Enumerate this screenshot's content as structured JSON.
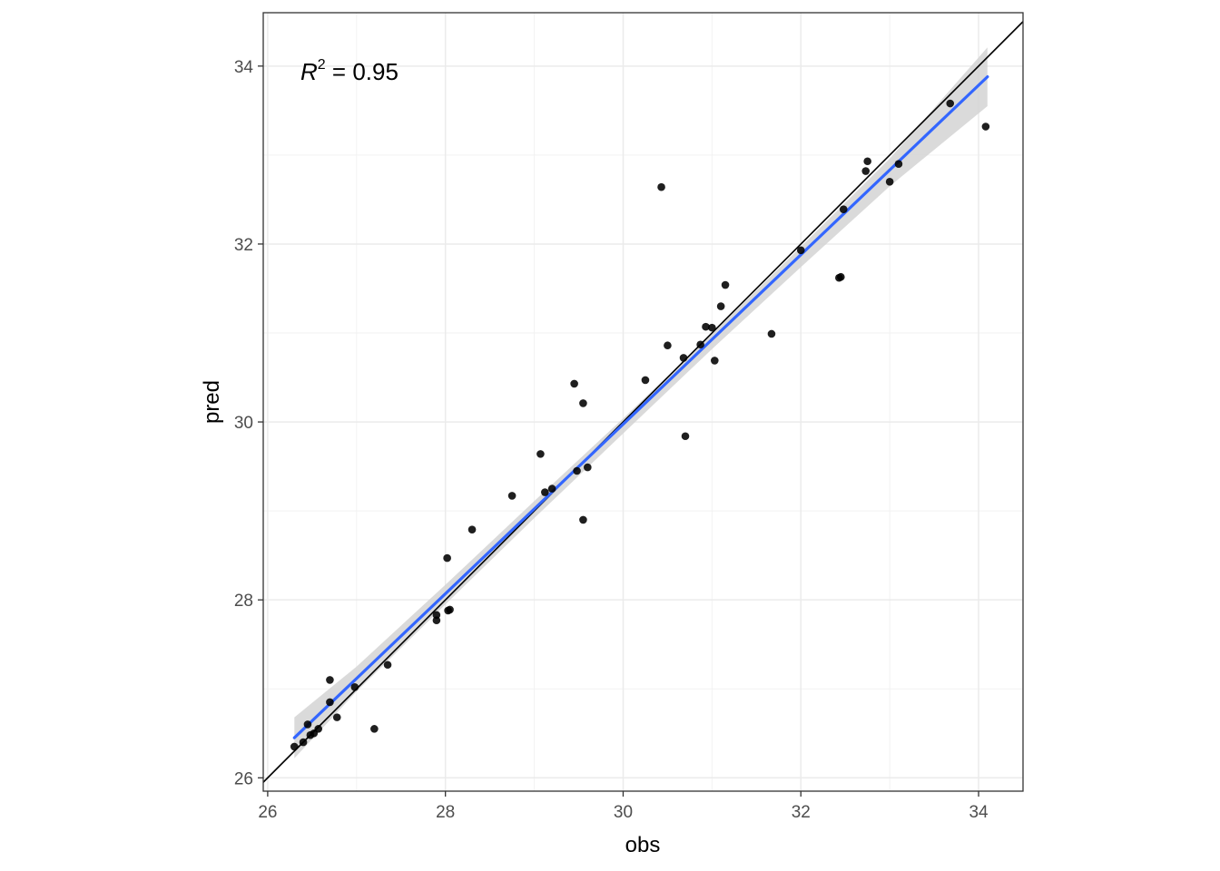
{
  "chart_data": {
    "type": "scatter",
    "xlabel": "obs",
    "ylabel": "pred",
    "xlim": [
      25.95,
      34.5
    ],
    "ylim": [
      25.85,
      34.6
    ],
    "x_ticks": [
      26,
      28,
      30,
      32,
      34
    ],
    "y_ticks": [
      26,
      28,
      30,
      32,
      34
    ],
    "grid": true,
    "annotation": {
      "prefix": "R",
      "superscript": "2",
      "text": " = 0.95"
    },
    "identity_line": {
      "slope": 1,
      "intercept": 0,
      "color": "#000000"
    },
    "fit_line": {
      "x_start": 26.3,
      "y_start": 26.45,
      "x_end": 34.1,
      "y_end": 33.88,
      "color": "#3366ff"
    },
    "confidence_band": {
      "x": [
        26.3,
        27.0,
        28.0,
        29.0,
        30.0,
        31.0,
        32.0,
        33.0,
        34.1
      ],
      "lower": [
        26.22,
        26.97,
        27.95,
        28.92,
        29.87,
        30.82,
        31.74,
        32.65,
        33.55
      ],
      "upper": [
        26.68,
        27.25,
        28.17,
        29.11,
        30.04,
        30.99,
        31.97,
        32.96,
        34.21
      ],
      "color": "#d3d3d3"
    },
    "points": [
      {
        "x": 26.3,
        "y": 26.35
      },
      {
        "x": 26.4,
        "y": 26.4
      },
      {
        "x": 26.45,
        "y": 26.6
      },
      {
        "x": 26.48,
        "y": 26.48
      },
      {
        "x": 26.52,
        "y": 26.5
      },
      {
        "x": 26.57,
        "y": 26.55
      },
      {
        "x": 26.7,
        "y": 27.1
      },
      {
        "x": 26.7,
        "y": 26.85
      },
      {
        "x": 26.78,
        "y": 26.68
      },
      {
        "x": 26.98,
        "y": 27.02
      },
      {
        "x": 27.2,
        "y": 26.55
      },
      {
        "x": 27.35,
        "y": 27.27
      },
      {
        "x": 27.9,
        "y": 27.83
      },
      {
        "x": 27.9,
        "y": 27.77
      },
      {
        "x": 28.02,
        "y": 28.47
      },
      {
        "x": 28.03,
        "y": 27.88
      },
      {
        "x": 28.05,
        "y": 27.89
      },
      {
        "x": 28.3,
        "y": 28.79
      },
      {
        "x": 28.75,
        "y": 29.17
      },
      {
        "x": 29.07,
        "y": 29.64
      },
      {
        "x": 29.12,
        "y": 29.21
      },
      {
        "x": 29.2,
        "y": 29.25
      },
      {
        "x": 29.45,
        "y": 30.43
      },
      {
        "x": 29.48,
        "y": 29.45
      },
      {
        "x": 29.55,
        "y": 30.21
      },
      {
        "x": 29.55,
        "y": 28.9
      },
      {
        "x": 29.6,
        "y": 29.49
      },
      {
        "x": 30.25,
        "y": 30.47
      },
      {
        "x": 30.43,
        "y": 32.64
      },
      {
        "x": 30.5,
        "y": 30.86
      },
      {
        "x": 30.68,
        "y": 30.72
      },
      {
        "x": 30.7,
        "y": 29.84
      },
      {
        "x": 30.87,
        "y": 30.87
      },
      {
        "x": 30.93,
        "y": 31.07
      },
      {
        "x": 31.0,
        "y": 31.06
      },
      {
        "x": 31.03,
        "y": 30.69
      },
      {
        "x": 31.1,
        "y": 31.3
      },
      {
        "x": 31.15,
        "y": 31.54
      },
      {
        "x": 31.67,
        "y": 30.99
      },
      {
        "x": 32.0,
        "y": 31.93
      },
      {
        "x": 32.43,
        "y": 31.62
      },
      {
        "x": 32.45,
        "y": 31.63
      },
      {
        "x": 32.48,
        "y": 32.39
      },
      {
        "x": 32.73,
        "y": 32.82
      },
      {
        "x": 32.75,
        "y": 32.93
      },
      {
        "x": 33.0,
        "y": 32.7
      },
      {
        "x": 33.1,
        "y": 32.9
      },
      {
        "x": 33.68,
        "y": 33.58
      },
      {
        "x": 34.08,
        "y": 33.32
      }
    ]
  }
}
